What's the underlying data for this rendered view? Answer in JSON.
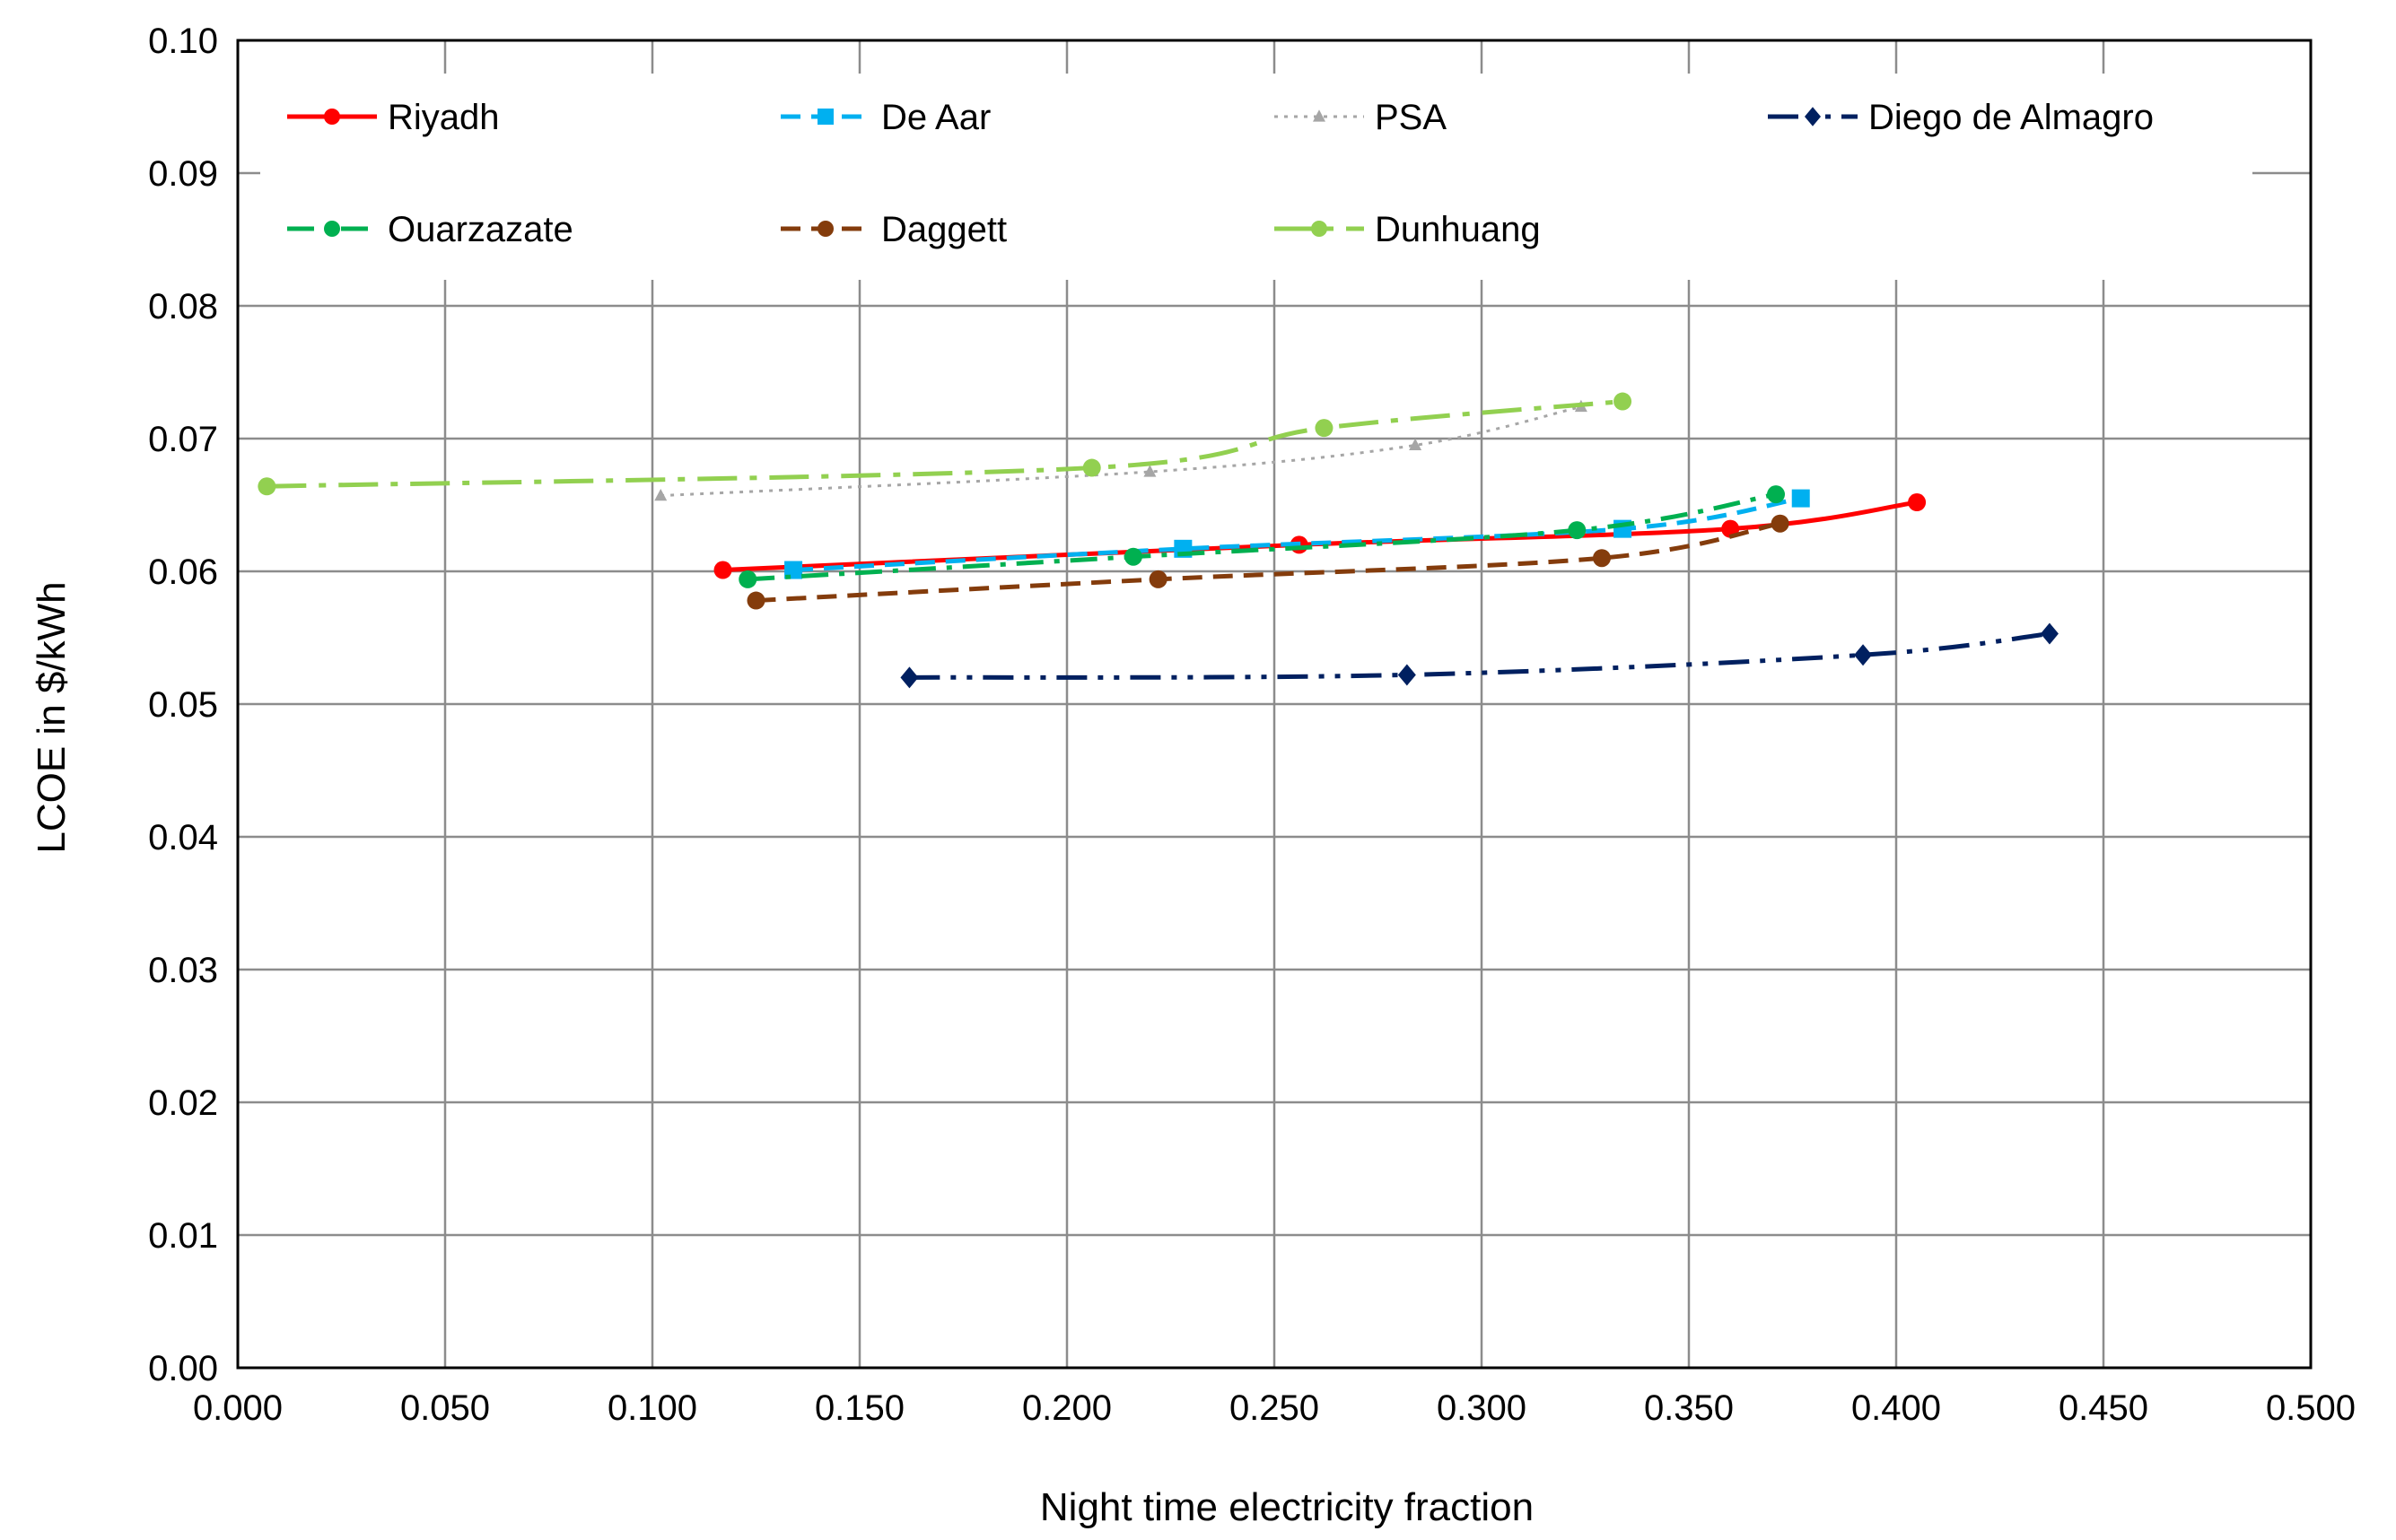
{
  "chart_data": {
    "type": "line",
    "title": "",
    "xlabel": "Night time electricity fraction",
    "ylabel": "LCOE in $/kWh",
    "xlim": [
      0,
      0.5
    ],
    "ylim": [
      0,
      0.1
    ],
    "x_ticks": [
      0,
      0.05,
      0.1,
      0.15,
      0.2,
      0.25,
      0.3,
      0.35,
      0.4,
      0.45,
      0.5
    ],
    "x_tick_labels": [
      "0.000",
      "0.050",
      "0.100",
      "0.150",
      "0.200",
      "0.250",
      "0.300",
      "0.350",
      "0.400",
      "0.450",
      "0.500"
    ],
    "y_ticks": [
      0,
      0.01,
      0.02,
      0.03,
      0.04,
      0.05,
      0.06,
      0.07,
      0.08,
      0.09,
      0.1
    ],
    "y_tick_labels": [
      "0.00",
      "0.01",
      "0.02",
      "0.03",
      "0.04",
      "0.05",
      "0.06",
      "0.07",
      "0.08",
      "0.09",
      "0.10"
    ],
    "grid": true,
    "legend_position": "top, inside plot",
    "series": [
      {
        "name": "Riyadh",
        "color": "#ff0000",
        "dash": "solid",
        "marker": "circle",
        "x": [
          0.117,
          0.256,
          0.36,
          0.405
        ],
        "y": [
          0.0601,
          0.062,
          0.0632,
          0.0652
        ]
      },
      {
        "name": "De Aar",
        "color": "#00b0f0",
        "dash": "dash",
        "marker": "square",
        "x": [
          0.134,
          0.228,
          0.334,
          0.377
        ],
        "y": [
          0.0601,
          0.0617,
          0.0632,
          0.0655
        ]
      },
      {
        "name": "PSA",
        "color": "#a6a6a6",
        "dash": "dot",
        "marker": "triangle",
        "x": [
          0.102,
          0.22,
          0.284,
          0.324
        ],
        "y": [
          0.0657,
          0.0675,
          0.0695,
          0.0724
        ]
      },
      {
        "name": "Diego de Almagro",
        "color": "#002060",
        "dash": "dashdotdot",
        "marker": "diamond",
        "x": [
          0.162,
          0.282,
          0.392,
          0.437
        ],
        "y": [
          0.052,
          0.0522,
          0.0537,
          0.0553
        ]
      },
      {
        "name": "Ouarzazate",
        "color": "#00b050",
        "dash": "dashdot",
        "marker": "circle",
        "x": [
          0.123,
          0.216,
          0.323,
          0.371
        ],
        "y": [
          0.0594,
          0.0611,
          0.0631,
          0.0658
        ]
      },
      {
        "name": "Daggett",
        "color": "#843c0c",
        "dash": "dash",
        "marker": "circle",
        "x": [
          0.125,
          0.222,
          0.329,
          0.372
        ],
        "y": [
          0.0578,
          0.0594,
          0.061,
          0.0636
        ]
      },
      {
        "name": "Dunhuang",
        "color": "#92d050",
        "dash": "longdashdot",
        "marker": "circle",
        "x": [
          0.007,
          0.206,
          0.262,
          0.334
        ],
        "y": [
          0.0664,
          0.0678,
          0.0708,
          0.0728
        ]
      }
    ]
  }
}
